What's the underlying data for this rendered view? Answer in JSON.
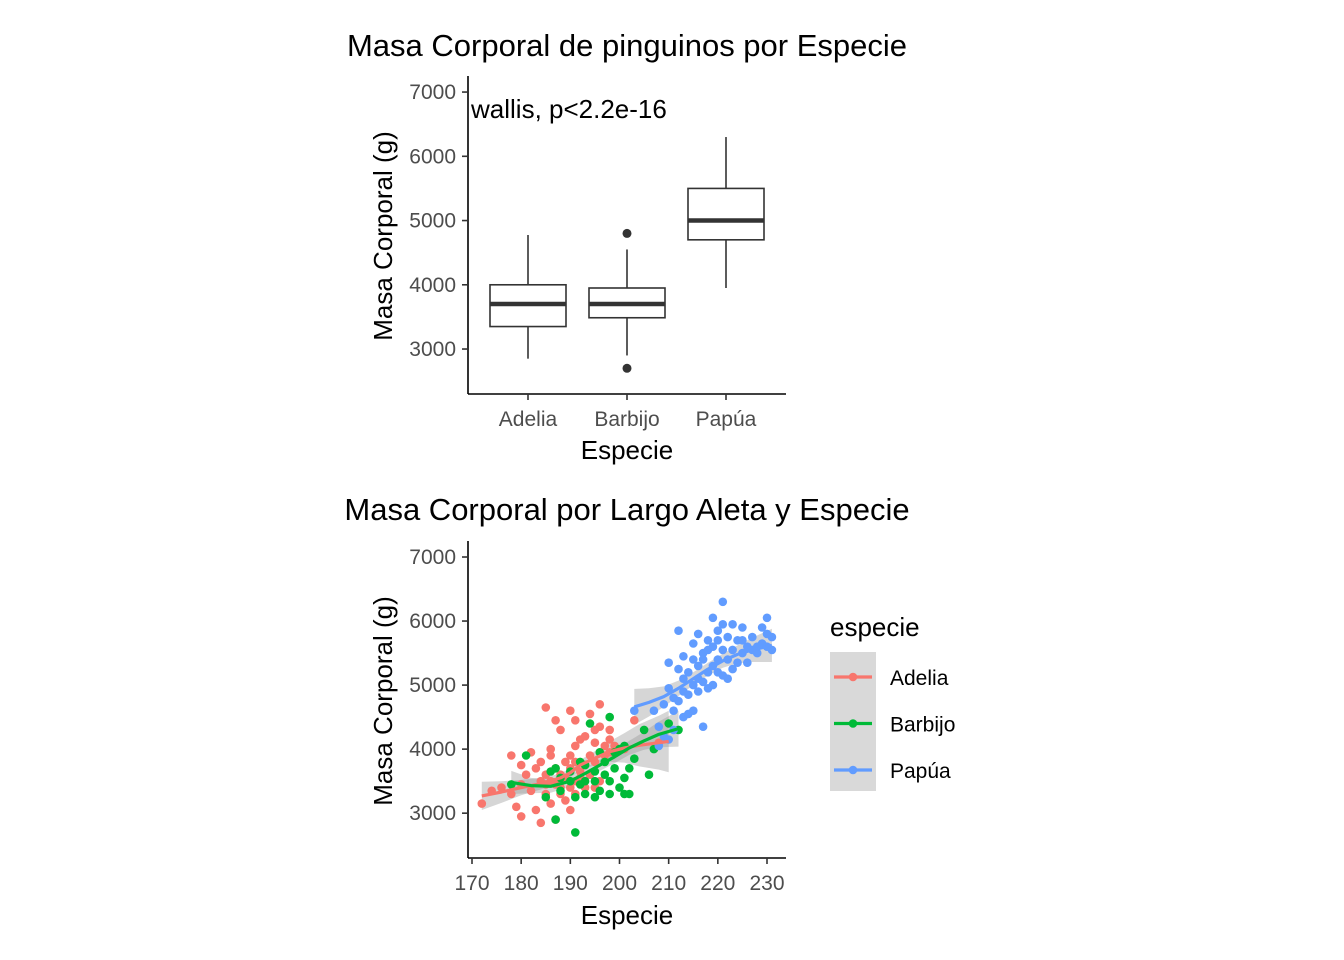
{
  "chart_data": [
    {
      "type": "box",
      "title": "Masa Corporal de pinguinos por Especie",
      "xlabel": "Especie",
      "ylabel": "Masa Corporal (g)",
      "annotation": "wallis, p<2.2e-16",
      "categories": [
        "Adelia",
        "Barbijo",
        "Papúa"
      ],
      "ylim": [
        2300,
        7250
      ],
      "yticks": [
        3000,
        4000,
        5000,
        6000,
        7000
      ],
      "boxes": [
        {
          "category": "Adelia",
          "whisker_low": 2850,
          "q1": 3350,
          "median": 3700,
          "q3": 4000,
          "whisker_high": 4775,
          "outliers": []
        },
        {
          "category": "Barbijo",
          "whisker_low": 2900,
          "q1": 3487,
          "median": 3700,
          "q3": 3950,
          "whisker_high": 4550,
          "outliers": [
            2700,
            4800
          ]
        },
        {
          "category": "Papúa",
          "whisker_low": 3950,
          "q1": 4700,
          "median": 5000,
          "q3": 5500,
          "whisker_high": 6300,
          "outliers": []
        }
      ],
      "grid": false,
      "colors": {
        "box_line": "#333333",
        "box_fill": "#ffffff"
      }
    },
    {
      "type": "scatter",
      "title": "Masa Corporal por Largo Aleta y Especie",
      "xlabel": "Especie",
      "ylabel": "Masa Corporal (g)",
      "xlim": [
        171,
        232.5
      ],
      "ylim": [
        2300,
        7250
      ],
      "xticks": [
        170,
        180,
        190,
        200,
        210,
        220,
        230
      ],
      "yticks": [
        3000,
        4000,
        5000,
        6000,
        7000
      ],
      "legend": {
        "title": "especie",
        "position": "right"
      },
      "grid": false,
      "series": [
        {
          "name": "Adelia",
          "color": "#F8766D",
          "points": [
            [
              172,
              3150
            ],
            [
              174,
              3350
            ],
            [
              176,
              3400
            ],
            [
              178,
              3300
            ],
            [
              178,
              3900
            ],
            [
              179,
              3100
            ],
            [
              180,
              3750
            ],
            [
              180,
              3450
            ],
            [
              180,
              2950
            ],
            [
              181,
              3600
            ],
            [
              182,
              3950
            ],
            [
              182,
              3350
            ],
            [
              183,
              3050
            ],
            [
              183,
              3700
            ],
            [
              184,
              3500
            ],
            [
              184,
              3800
            ],
            [
              184,
              2850
            ],
            [
              185,
              3450
            ],
            [
              185,
              3600
            ],
            [
              185,
              3300
            ],
            [
              185,
              4650
            ],
            [
              186,
              3150
            ],
            [
              186,
              3900
            ],
            [
              186,
              4000
            ],
            [
              186,
              3500
            ],
            [
              187,
              3450
            ],
            [
              187,
              4450
            ],
            [
              187,
              3700
            ],
            [
              187,
              2900
            ],
            [
              188,
              3300
            ],
            [
              188,
              3600
            ],
            [
              188,
              3400
            ],
            [
              188,
              4300
            ],
            [
              189,
              3200
            ],
            [
              189,
              3800
            ],
            [
              189,
              3550
            ],
            [
              190,
              3400
            ],
            [
              190,
              3700
            ],
            [
              190,
              3900
            ],
            [
              190,
              4600
            ],
            [
              190,
              3050
            ],
            [
              191,
              4450
            ],
            [
              191,
              3500
            ],
            [
              191,
              3800
            ],
            [
              191,
              4050
            ],
            [
              191,
              3300
            ],
            [
              192,
              3650
            ],
            [
              192,
              4150
            ],
            [
              192,
              3550
            ],
            [
              193,
              3400
            ],
            [
              193,
              3750
            ],
            [
              193,
              4200
            ],
            [
              194,
              3600
            ],
            [
              194,
              3900
            ],
            [
              194,
              4550
            ],
            [
              195,
              3400
            ],
            [
              195,
              3800
            ],
            [
              195,
              4100
            ],
            [
              195,
              4300
            ],
            [
              196,
              3500
            ],
            [
              196,
              4350
            ],
            [
              196,
              3950
            ],
            [
              196,
              4700
            ],
            [
              197,
              3900
            ],
            [
              197,
              4050
            ],
            [
              198,
              4150
            ],
            [
              198,
              3950
            ],
            [
              198,
              4300
            ],
            [
              199,
              4050
            ],
            [
              201,
              4000
            ],
            [
              203,
              4450
            ],
            [
              208,
              4100
            ]
          ]
        },
        {
          "name": "Barbijo",
          "color": "#00BA38",
          "points": [
            [
              178,
              3450
            ],
            [
              181,
              3900
            ],
            [
              185,
              3250
            ],
            [
              186,
              3650
            ],
            [
              187,
              2900
            ],
            [
              187,
              3700
            ],
            [
              188,
              3350
            ],
            [
              188,
              3550
            ],
            [
              190,
              3500
            ],
            [
              190,
              3650
            ],
            [
              191,
              2700
            ],
            [
              191,
              3250
            ],
            [
              192,
              3800
            ],
            [
              192,
              3450
            ],
            [
              193,
              3500
            ],
            [
              193,
              3750
            ],
            [
              193,
              3300
            ],
            [
              194,
              4400
            ],
            [
              195,
              3500
            ],
            [
              195,
              3650
            ],
            [
              195,
              3250
            ],
            [
              196,
              3950
            ],
            [
              196,
              3350
            ],
            [
              197,
              3600
            ],
            [
              197,
              3800
            ],
            [
              198,
              4500
            ],
            [
              198,
              3500
            ],
            [
              198,
              3300
            ],
            [
              199,
              3950
            ],
            [
              199,
              3700
            ],
            [
              200,
              4000
            ],
            [
              200,
              3400
            ],
            [
              201,
              3550
            ],
            [
              201,
              3300
            ],
            [
              201,
              4050
            ],
            [
              202,
              3700
            ],
            [
              202,
              3300
            ],
            [
              203,
              3850
            ],
            [
              205,
              4300
            ],
            [
              206,
              3600
            ],
            [
              207,
              4000
            ],
            [
              210,
              4400
            ],
            [
              212,
              4300
            ]
          ]
        },
        {
          "name": "Papúa",
          "color": "#619CFF",
          "points": [
            [
              203,
              4600
            ],
            [
              207,
              4600
            ],
            [
              208,
              4050
            ],
            [
              208,
              4350
            ],
            [
              209,
              4700
            ],
            [
              209,
              4200
            ],
            [
              210,
              4950
            ],
            [
              210,
              5350
            ],
            [
              210,
              4150
            ],
            [
              211,
              4600
            ],
            [
              211,
              4800
            ],
            [
              211,
              4300
            ],
            [
              212,
              5850
            ],
            [
              212,
              4750
            ],
            [
              212,
              5250
            ],
            [
              213,
              4500
            ],
            [
              213,
              4900
            ],
            [
              213,
              5100
            ],
            [
              213,
              5450
            ],
            [
              214,
              4850
            ],
            [
              214,
              5200
            ],
            [
              214,
              4550
            ],
            [
              215,
              5000
            ],
            [
              215,
              5400
            ],
            [
              215,
              5650
            ],
            [
              215,
              4600
            ],
            [
              216,
              5300
            ],
            [
              216,
              4900
            ],
            [
              216,
              5100
            ],
            [
              216,
              5800
            ],
            [
              217,
              5500
            ],
            [
              217,
              4350
            ],
            [
              217,
              5050
            ],
            [
              217,
              5400
            ],
            [
              218,
              5200
            ],
            [
              218,
              5700
            ],
            [
              218,
              5550
            ],
            [
              218,
              4950
            ],
            [
              219,
              5600
            ],
            [
              219,
              5000
            ],
            [
              219,
              5300
            ],
            [
              219,
              6050
            ],
            [
              220,
              5700
            ],
            [
              220,
              5200
            ],
            [
              220,
              5400
            ],
            [
              220,
              5850
            ],
            [
              221,
              6300
            ],
            [
              221,
              5150
            ],
            [
              221,
              5550
            ],
            [
              221,
              5950
            ],
            [
              222,
              5400
            ],
            [
              222,
              5750
            ],
            [
              222,
              5100
            ],
            [
              223,
              5550
            ],
            [
              223,
              5950
            ],
            [
              223,
              5250
            ],
            [
              224,
              5700
            ],
            [
              224,
              5350
            ],
            [
              225,
              5500
            ],
            [
              225,
              5900
            ],
            [
              225,
              5700
            ],
            [
              226,
              5350
            ],
            [
              226,
              5600
            ],
            [
              227,
              5550
            ],
            [
              227,
              5750
            ],
            [
              228,
              5500
            ],
            [
              228,
              5600
            ],
            [
              229,
              5650
            ],
            [
              229,
              5900
            ],
            [
              230,
              5800
            ],
            [
              230,
              6050
            ],
            [
              230,
              5600
            ],
            [
              231,
              5750
            ],
            [
              231,
              5550
            ]
          ]
        }
      ],
      "smooth": [
        {
          "name": "Adelia",
          "color": "#F8766D",
          "x": [
            172,
            176,
            180,
            184,
            188,
            190,
            192,
            195,
            198,
            201,
            204,
            208,
            210
          ],
          "y": [
            3270,
            3330,
            3400,
            3460,
            3550,
            3630,
            3750,
            3860,
            3960,
            4020,
            4060,
            4100,
            4120
          ],
          "se": [
            220,
            170,
            120,
            90,
            70,
            70,
            80,
            110,
            160,
            230,
            330,
            420,
            480
          ]
        },
        {
          "name": "Barbijo",
          "color": "#00BA38",
          "x": [
            178,
            182,
            186,
            190,
            193,
            196,
            199,
            202,
            205,
            208,
            212
          ],
          "y": [
            3480,
            3430,
            3420,
            3500,
            3620,
            3750,
            3880,
            4020,
            4130,
            4230,
            4320
          ],
          "se": [
            180,
            120,
            100,
            90,
            80,
            90,
            100,
            110,
            140,
            200,
            280
          ]
        },
        {
          "name": "Papúa",
          "color": "#619CFF",
          "x": [
            203,
            206,
            209,
            212,
            215,
            218,
            221,
            224,
            227,
            231
          ],
          "y": [
            4660,
            4730,
            4820,
            4950,
            5100,
            5250,
            5380,
            5480,
            5550,
            5620
          ],
          "se": [
            280,
            220,
            160,
            120,
            100,
            100,
            110,
            140,
            190,
            260
          ]
        }
      ]
    }
  ]
}
